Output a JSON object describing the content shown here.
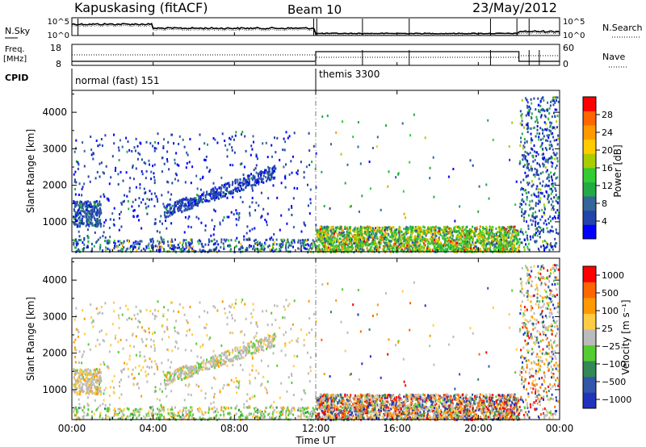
{
  "header": {
    "station": "Kapuskasing (fitACF)",
    "beam": "Beam 10",
    "date": "23/May/2012"
  },
  "top_panel_labels": {
    "nsky": "N.Sky",
    "nsearch": "N.Search",
    "freq_line1": "Freq.",
    "freq_line2": "[MHz]",
    "nave": "Nave",
    "cpid": "CPID",
    "noise_tick_high": "10^5",
    "noise_tick_low": "10^0",
    "freq_tick_high": "18",
    "freq_tick_low": "8",
    "nave_tick_high": "60",
    "nave_tick_low": "0"
  },
  "cpid_segments": [
    {
      "label": "normal (fast) 151",
      "start_hour": 0
    },
    {
      "label": "themis 3300",
      "start_hour": 12
    }
  ],
  "x_axis": {
    "label": "Time UT",
    "ticks": [
      "00:00",
      "04:00",
      "08:00",
      "12:00",
      "16:00",
      "20:00",
      "00:00"
    ]
  },
  "chart_data": [
    {
      "type": "heatmap",
      "name": "power",
      "ylabel": "Slant Range [km]",
      "yticks": [
        1000,
        2000,
        3000,
        4000
      ],
      "ylim": [
        180,
        4600
      ],
      "xlim_hours": [
        0,
        24
      ],
      "colorbar": {
        "label": "Power [dB]",
        "ticks": [
          "4",
          "8",
          "12",
          "16",
          "20",
          "24",
          "28"
        ],
        "colors": [
          "#0000ff",
          "#2244aa",
          "#336699",
          "#22aa44",
          "#33cc33",
          "#aacc00",
          "#ffcc00",
          "#ff9900",
          "#ff6600",
          "#ff0000"
        ]
      }
    },
    {
      "type": "heatmap",
      "name": "velocity",
      "ylabel": "Slant Range [km]",
      "yticks": [
        1000,
        2000,
        3000,
        4000
      ],
      "ylim": [
        180,
        4600
      ],
      "xlim_hours": [
        0,
        24
      ],
      "colorbar": {
        "label": "Velocity  [m s⁻¹]",
        "ticks": [
          "1000",
          "500",
          "100",
          "25",
          "−25",
          "−100",
          "−500",
          "−1000"
        ],
        "colors": [
          "#2233bb",
          "#3355aa",
          "#338855",
          "#55cc33",
          "#bbbbbb",
          "#ffcc44",
          "#ff9900",
          "#ff6600",
          "#ff0000"
        ]
      }
    }
  ]
}
